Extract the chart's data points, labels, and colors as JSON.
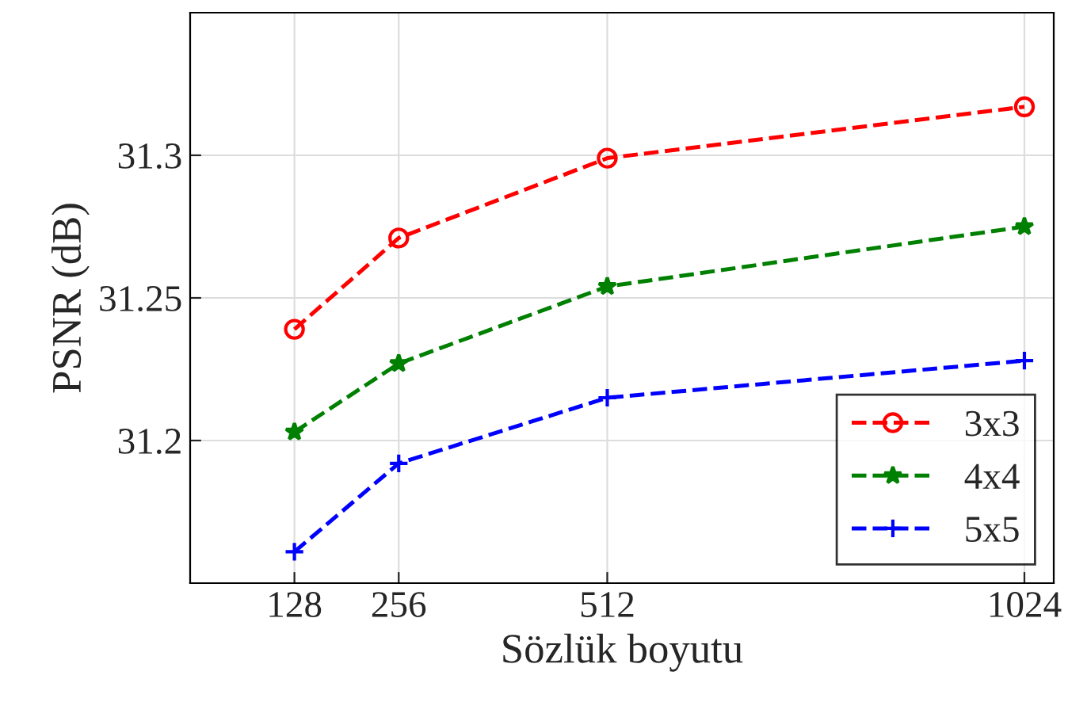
{
  "chart_data": {
    "type": "line",
    "xlabel": "Sözlük boyutu",
    "ylabel": "PSNR (dB)",
    "x": [
      128,
      256,
      512,
      1024
    ],
    "series": [
      {
        "name": "3x3",
        "color": "#ff0000",
        "marker": "circle",
        "values": [
          31.239,
          31.271,
          31.299,
          31.317
        ]
      },
      {
        "name": "4x4",
        "color": "#008000",
        "marker": "star",
        "values": [
          31.203,
          31.227,
          31.254,
          31.275
        ]
      },
      {
        "name": "5x5",
        "color": "#0000ff",
        "marker": "cross",
        "values": [
          31.161,
          31.192,
          31.215,
          31.228
        ]
      }
    ],
    "xlim": [
      0,
      1060
    ],
    "xticks": [
      128,
      256,
      512,
      1024
    ],
    "ylim": [
      31.15,
      31.35
    ],
    "yticks": [
      31.2,
      31.25,
      31.3
    ],
    "grid": true,
    "legend": "bottom right",
    "line_style": "dashed"
  }
}
